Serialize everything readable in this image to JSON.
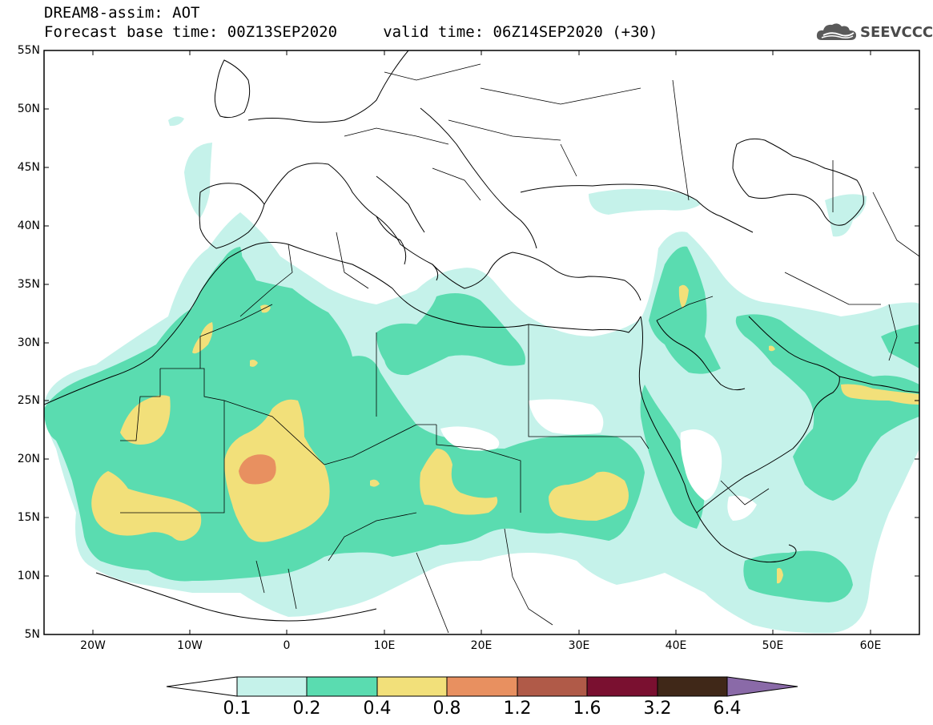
{
  "header": {
    "title_line1": "DREAM8-assim: AOT",
    "title_line2": "Forecast base time: 00Z13SEP2020     valid time: 06Z14SEP2020 (+30)"
  },
  "logo": {
    "text": "SEEVCCC",
    "icon": "cloud-icon"
  },
  "map": {
    "lat_labels": [
      "55N",
      "50N",
      "45N",
      "40N",
      "35N",
      "30N",
      "25N",
      "20N",
      "15N",
      "10N",
      "5N"
    ],
    "lon_labels": [
      "20W",
      "10W",
      "0",
      "10E",
      "20E",
      "30E",
      "40E",
      "50E",
      "60E"
    ]
  },
  "colorbar": {
    "labels": [
      "0.1",
      "0.2",
      "0.4",
      "0.8",
      "1.2",
      "1.6",
      "3.2",
      "6.4"
    ],
    "colors": [
      "#ffffff",
      "#c5f2ea",
      "#5adcb0",
      "#f2e07a",
      "#e89060",
      "#b05a48",
      "#7a1030",
      "#402818",
      "#8a6aa8"
    ]
  },
  "colors": {
    "class1": "#c5f2ea",
    "class2": "#5adcb0",
    "class3": "#f2e07a",
    "class4": "#e89060"
  }
}
